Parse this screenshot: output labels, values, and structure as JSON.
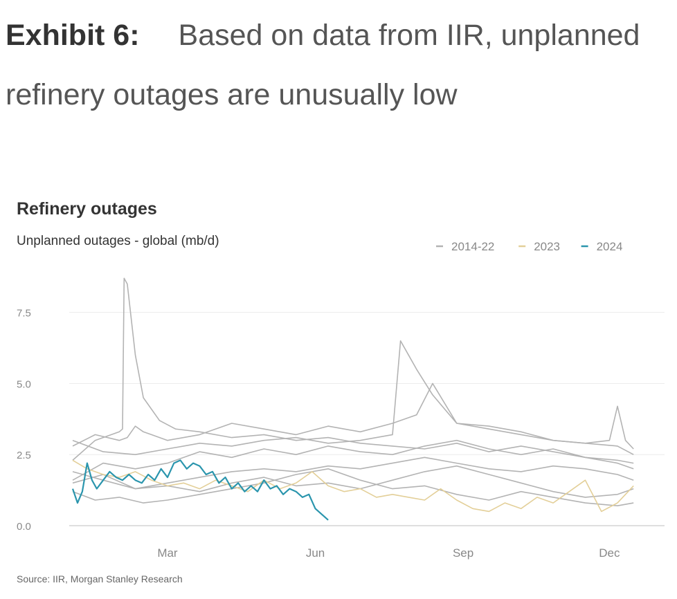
{
  "exhibit": {
    "label": "Exhibit 6:",
    "text": "Based on data from IIR, unplanned refinery outages are unusually low"
  },
  "chart_data": {
    "type": "line",
    "title": "Refinery outages",
    "subtitle": "Unplanned outages - global (mb/d)",
    "source": "Source: IIR, Morgan Stanley Research",
    "x_tick_labels": [
      "Mar",
      "Jun",
      "Sep",
      "Dec"
    ],
    "x_tick_days": [
      60,
      152,
      244,
      335
    ],
    "xlim": [
      1,
      365
    ],
    "ylim": [
      0,
      9
    ],
    "y_ticks": [
      0.0,
      2.5,
      5.0,
      7.5
    ],
    "y_tick_labels": [
      "0.0",
      "2.5",
      "5.0",
      "7.5"
    ],
    "grid": true,
    "legend_position": "top-right",
    "legend": [
      {
        "label": "2014-22",
        "color": "#b3b3b3"
      },
      {
        "label": "2023",
        "color": "#e3cf98"
      },
      {
        "label": "2024",
        "color": "#2a95ad"
      }
    ],
    "series": [
      {
        "name": "2014-22",
        "color": "#b3b3b3",
        "x": [
          1,
          15,
          30,
          35,
          40,
          45,
          50,
          60,
          80,
          100,
          120,
          140,
          160,
          180,
          200,
          215,
          225,
          240,
          260,
          280,
          300,
          320,
          335,
          340,
          345,
          350
        ],
        "y": [
          2.8,
          3.2,
          3.0,
          3.1,
          3.5,
          3.3,
          3.2,
          3.0,
          3.2,
          3.6,
          3.4,
          3.2,
          3.5,
          3.3,
          3.6,
          3.9,
          5.0,
          3.6,
          3.5,
          3.3,
          3.0,
          2.9,
          3.0,
          4.2,
          3.0,
          2.7
        ]
      },
      {
        "name": "2014-22",
        "color": "#b3b3b3",
        "x": [
          1,
          15,
          30,
          32,
          33,
          35,
          40,
          45,
          55,
          65,
          80,
          100,
          120,
          140,
          160,
          180,
          200,
          220,
          240,
          260,
          280,
          300,
          320,
          340,
          350
        ],
        "y": [
          2.3,
          3.0,
          3.3,
          3.4,
          8.7,
          8.5,
          6.0,
          4.5,
          3.7,
          3.4,
          3.3,
          3.1,
          3.2,
          3.0,
          3.1,
          2.9,
          2.8,
          2.7,
          2.9,
          2.6,
          2.8,
          2.6,
          2.4,
          2.3,
          2.2
        ]
      },
      {
        "name": "2014-22",
        "color": "#b3b3b3",
        "x": [
          1,
          20,
          40,
          60,
          80,
          100,
          120,
          140,
          160,
          180,
          200,
          205,
          210,
          215,
          225,
          240,
          260,
          280,
          300,
          320,
          340,
          350
        ],
        "y": [
          3.0,
          2.6,
          2.5,
          2.7,
          2.9,
          2.8,
          3.0,
          3.1,
          2.9,
          3.0,
          3.2,
          6.5,
          6.0,
          5.5,
          4.6,
          3.6,
          3.4,
          3.2,
          3.0,
          2.9,
          2.8,
          2.5
        ]
      },
      {
        "name": "2014-22",
        "color": "#b3b3b3",
        "x": [
          1,
          20,
          40,
          60,
          80,
          100,
          120,
          140,
          160,
          180,
          200,
          220,
          240,
          260,
          280,
          300,
          320,
          340,
          350
        ],
        "y": [
          1.6,
          2.2,
          2.0,
          2.2,
          2.6,
          2.4,
          2.7,
          2.5,
          2.8,
          2.6,
          2.5,
          2.8,
          3.0,
          2.7,
          2.5,
          2.7,
          2.4,
          2.2,
          2.0
        ]
      },
      {
        "name": "2014-22",
        "color": "#b3b3b3",
        "x": [
          1,
          20,
          40,
          60,
          80,
          100,
          120,
          140,
          160,
          180,
          200,
          220,
          240,
          260,
          280,
          300,
          320,
          340,
          350
        ],
        "y": [
          1.5,
          1.8,
          1.3,
          1.5,
          1.7,
          1.9,
          2.0,
          1.9,
          2.1,
          2.0,
          2.2,
          2.4,
          2.2,
          2.0,
          1.9,
          2.1,
          2.0,
          1.8,
          1.6
        ]
      },
      {
        "name": "2014-22",
        "color": "#b3b3b3",
        "x": [
          1,
          15,
          30,
          45,
          60,
          80,
          100,
          120,
          140,
          160,
          180,
          200,
          220,
          240,
          260,
          280,
          300,
          320,
          340,
          350
        ],
        "y": [
          1.2,
          0.9,
          1.0,
          0.8,
          0.9,
          1.1,
          1.3,
          1.5,
          1.8,
          2.0,
          1.6,
          1.3,
          1.4,
          1.1,
          0.9,
          1.2,
          1.0,
          0.8,
          0.7,
          0.8
        ]
      },
      {
        "name": "2014-22",
        "color": "#b3b3b3",
        "x": [
          1,
          20,
          40,
          60,
          80,
          100,
          120,
          140,
          160,
          180,
          200,
          220,
          240,
          260,
          280,
          300,
          320,
          340,
          350
        ],
        "y": [
          1.9,
          1.6,
          1.3,
          1.4,
          1.2,
          1.5,
          1.7,
          1.4,
          1.5,
          1.3,
          1.6,
          1.9,
          2.1,
          1.8,
          1.5,
          1.2,
          1.0,
          1.1,
          1.3
        ]
      },
      {
        "name": "2023",
        "color": "#e3cf98",
        "x": [
          1,
          10,
          20,
          30,
          40,
          50,
          60,
          70,
          80,
          90,
          100,
          110,
          120,
          130,
          140,
          150,
          160,
          170,
          180,
          190,
          200,
          210,
          220,
          230,
          240,
          250,
          260,
          270,
          280,
          290,
          300,
          310,
          320,
          330,
          340,
          350
        ],
        "y": [
          2.3,
          2.0,
          1.8,
          1.7,
          1.9,
          1.6,
          1.4,
          1.5,
          1.3,
          1.6,
          1.4,
          1.2,
          1.6,
          1.3,
          1.5,
          1.9,
          1.4,
          1.2,
          1.3,
          1.0,
          1.1,
          1.0,
          0.9,
          1.3,
          0.9,
          0.6,
          0.5,
          0.8,
          0.6,
          1.0,
          0.8,
          1.2,
          1.6,
          0.5,
          0.8,
          1.4
        ]
      },
      {
        "name": "2024",
        "color": "#2a95ad",
        "x": [
          1,
          4,
          7,
          10,
          13,
          16,
          20,
          24,
          28,
          32,
          36,
          40,
          44,
          48,
          52,
          56,
          60,
          64,
          68,
          72,
          76,
          80,
          84,
          88,
          92,
          96,
          100,
          104,
          108,
          112,
          116,
          120,
          124,
          128,
          132,
          136,
          140,
          144,
          148,
          152,
          156,
          160
        ],
        "y": [
          1.3,
          0.8,
          1.2,
          2.2,
          1.6,
          1.3,
          1.6,
          1.9,
          1.7,
          1.6,
          1.8,
          1.6,
          1.5,
          1.8,
          1.6,
          2.0,
          1.7,
          2.2,
          2.3,
          2.0,
          2.2,
          2.1,
          1.8,
          1.9,
          1.5,
          1.7,
          1.3,
          1.5,
          1.2,
          1.4,
          1.2,
          1.6,
          1.3,
          1.4,
          1.1,
          1.3,
          1.2,
          1.0,
          1.1,
          0.6,
          0.4,
          0.2
        ]
      }
    ]
  }
}
